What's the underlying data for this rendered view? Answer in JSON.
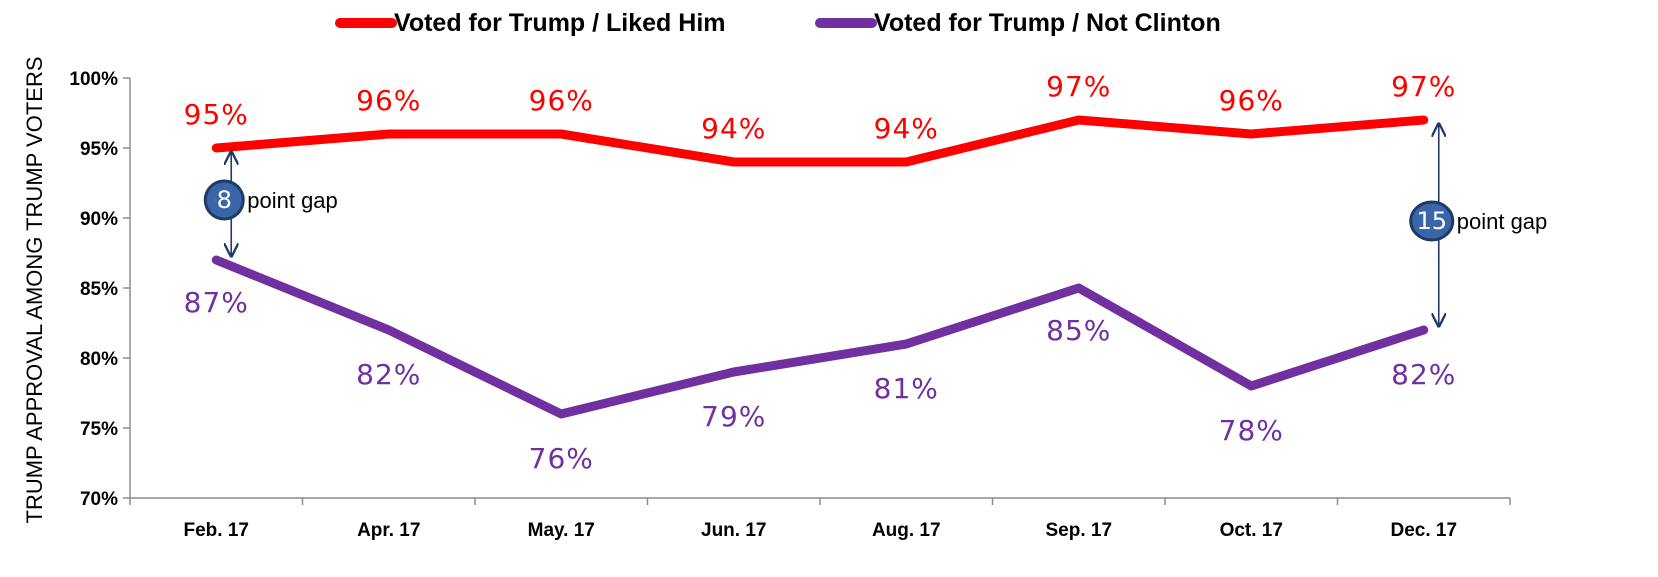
{
  "chart_data": {
    "type": "line",
    "categories": [
      "Feb. 17",
      "Apr. 17",
      "May. 17",
      "Jun. 17",
      "Aug. 17",
      "Sep. 17",
      "Oct. 17",
      "Dec. 17"
    ],
    "series": [
      {
        "name": "Voted for Trump / Liked Him",
        "color": "#ff0000",
        "values": [
          95,
          96,
          96,
          94,
          94,
          97,
          96,
          97
        ],
        "labels": [
          "95%",
          "96%",
          "96%",
          "94%",
          "94%",
          "97%",
          "96%",
          "97%"
        ]
      },
      {
        "name": "Voted for Trump / Not Clinton",
        "color": "#7030a0",
        "values": [
          87,
          82,
          76,
          79,
          81,
          85,
          78,
          82
        ],
        "labels": [
          "87%",
          "82%",
          "76%",
          "79%",
          "81%",
          "85%",
          "78%",
          "82%"
        ]
      }
    ],
    "ylabel": "TRUMP APPROVAL AMONG TRUMP VOTERS",
    "ylim": [
      70,
      100
    ],
    "yticks": [
      70,
      75,
      80,
      85,
      90,
      95,
      100
    ],
    "ytick_labels": [
      "70%",
      "75%",
      "80%",
      "85%",
      "90%",
      "95%",
      "100%"
    ],
    "grid": false,
    "legend_position": "top-center",
    "annotations": [
      {
        "category": "Feb. 17",
        "gap": "8",
        "text": "point gap"
      },
      {
        "category": "Dec. 17",
        "gap": "15",
        "text": "point gap"
      }
    ]
  }
}
